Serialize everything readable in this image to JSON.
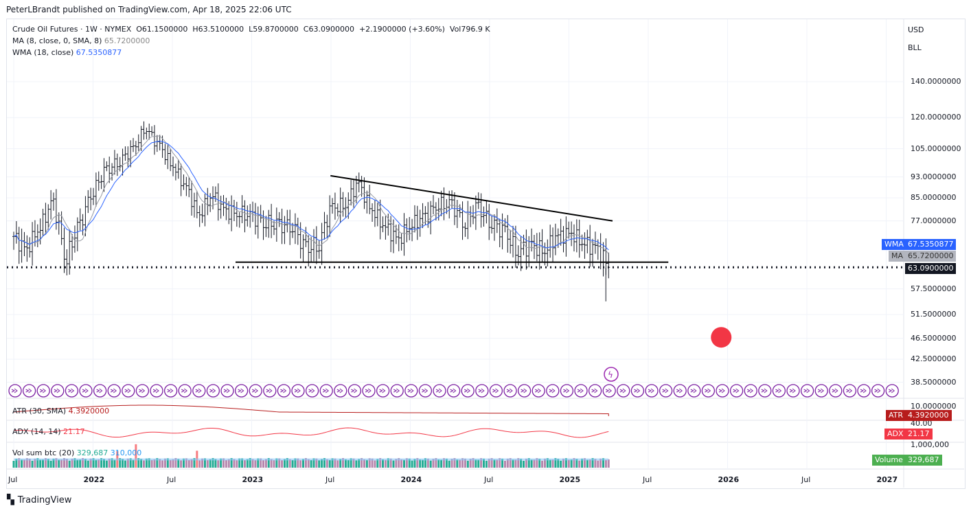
{
  "publisher_line": "PeterLBrandt published on TradingView.com, Apr 18, 2025 22:06 UTC",
  "legend": {
    "symbol": "Crude Oil Futures · 1W · NYMEX",
    "open": "O61.1500000",
    "high": "H63.5100000",
    "low": "L59.8700000",
    "close": "C63.0900000",
    "change": "+2.1900000 (+3.60%)",
    "volume": "Vol796.9 K",
    "ma_label": "MA (8, close, 0, SMA, 8)",
    "ma_value": "65.7200000",
    "wma_label": "WMA (18, close)",
    "wma_value": "67.5350877"
  },
  "currency": "USD",
  "unit": "BLL",
  "price_axis": [
    "140.0000000",
    "120.0000000",
    "105.0000000",
    "93.0000000",
    "85.0000000",
    "77.0000000",
    "57.5000000",
    "51.5000000",
    "46.5000000",
    "42.5000000",
    "38.5000000"
  ],
  "tags": {
    "wma": {
      "name": "WMA",
      "value": "67.5350877",
      "color": "#2962ff"
    },
    "ma": {
      "name": "MA",
      "value": "65.7200000",
      "color": "#9598a1"
    },
    "last": {
      "value": "63.0900000",
      "color": "#131722"
    },
    "atr": {
      "name": "ATR",
      "value": "4.3920000",
      "color": "#b71c1c"
    },
    "adx": {
      "name": "ADX",
      "value": "21.17",
      "color": "#f23645"
    },
    "volume": {
      "name": "Volume",
      "value": "329,687",
      "color": "#4caf50"
    }
  },
  "panes": {
    "atr": {
      "label": "ATR (30, SMA)",
      "value": "4.3920000",
      "axis": "10.0000000"
    },
    "adx": {
      "label": "ADX (14, 14)",
      "value": "21.17",
      "axis": "40.00"
    },
    "vol": {
      "label": "Vol sum btc (20)",
      "value1": "329,687",
      "value2": "310,000",
      "axis": "1,000,000"
    }
  },
  "time_axis": [
    {
      "t": "Jul",
      "bold": false
    },
    {
      "t": "2022",
      "bold": true
    },
    {
      "t": "Jul",
      "bold": false
    },
    {
      "t": "2023",
      "bold": true
    },
    {
      "t": "Jul",
      "bold": false
    },
    {
      "t": "2024",
      "bold": true
    },
    {
      "t": "Jul",
      "bold": false
    },
    {
      "t": "2025",
      "bold": true
    },
    {
      "t": "Jul",
      "bold": false
    },
    {
      "t": "2026",
      "bold": true
    },
    {
      "t": "Jul",
      "bold": false
    },
    {
      "t": "2027",
      "bold": true
    }
  ],
  "footer": "TradingView",
  "chart_data": {
    "type": "ohlc-bar",
    "scale": "log",
    "ylim": [
      38.5,
      140
    ],
    "monthly_close_approx": {
      "start": "2021-07",
      "values": [
        72,
        68,
        75,
        83,
        66,
        75,
        88,
        95,
        100,
        104,
        115,
        106,
        98,
        89,
        79,
        86,
        80,
        80,
        78,
        77,
        75,
        76,
        68,
        70,
        81,
        83,
        90,
        81,
        75,
        71,
        76,
        78,
        83,
        82,
        77,
        81,
        77,
        73,
        68,
        69,
        68,
        72,
        73,
        70,
        68,
        63
      ]
    },
    "last_bar": {
      "open": 61.15,
      "high": 63.51,
      "low": 59.87,
      "close": 63.09
    },
    "annotations": {
      "descending_trendline": [
        {
          "date": "2023-08",
          "price": 93.5
        },
        {
          "date": "2025-03",
          "price": 77
        }
      ],
      "support_line": {
        "price": 64.5,
        "from": "2022-11",
        "to": "2025-08"
      },
      "last_price_line": 63.09,
      "target_dot": {
        "date": "2025-12",
        "price": 46.7,
        "color": "#f23645"
      }
    },
    "grid": true
  }
}
